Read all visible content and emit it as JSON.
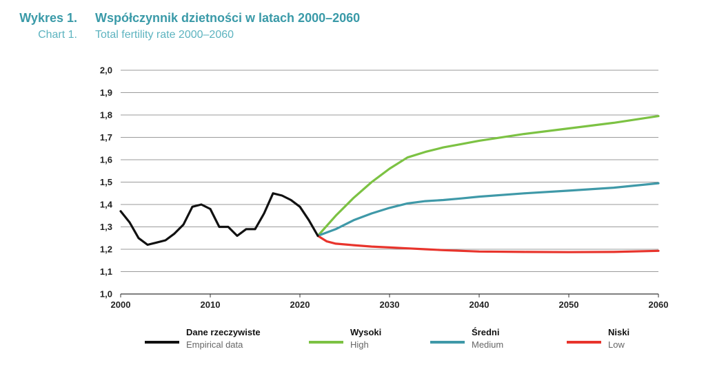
{
  "title": {
    "pl_prefix": "Wykres 1.",
    "pl_text": "Współczynnik dzietności w latach 2000–2060",
    "en_prefix": "Chart 1.",
    "en_text": "Total fertility rate 2000–2060"
  },
  "chart_data": {
    "type": "line",
    "title": "Współczynnik dzietności w latach 2000–2060",
    "subtitle": "Total fertility rate 2000–2060",
    "xlabel": "",
    "ylabel": "",
    "xlim": [
      2000,
      2060
    ],
    "ylim": [
      1.0,
      2.0
    ],
    "x_ticks": [
      "2000",
      "2010",
      "2020",
      "2030",
      "2040",
      "2050",
      "2060"
    ],
    "y_ticks": [
      "1,0",
      "1,1",
      "1,2",
      "1,3",
      "1,4",
      "1,5",
      "1,6",
      "1,7",
      "1,8",
      "1,9",
      "2,0"
    ],
    "grid": "horizontal",
    "legend_position": "bottom",
    "series": [
      {
        "name": "Dane rzeczywiste",
        "name_en": "Empirical data",
        "color": "#111111",
        "x": [
          2000,
          2001,
          2002,
          2003,
          2004,
          2005,
          2006,
          2007,
          2008,
          2009,
          2010,
          2011,
          2012,
          2013,
          2014,
          2015,
          2016,
          2017,
          2018,
          2019,
          2020,
          2021,
          2022
        ],
        "y": [
          1.37,
          1.32,
          1.25,
          1.22,
          1.23,
          1.24,
          1.27,
          1.31,
          1.39,
          1.4,
          1.38,
          1.3,
          1.3,
          1.26,
          1.29,
          1.29,
          1.36,
          1.45,
          1.44,
          1.42,
          1.39,
          1.33,
          1.26
        ]
      },
      {
        "name": "Wysoki",
        "name_en": "High",
        "color": "#7cc243",
        "x": [
          2022,
          2024,
          2026,
          2028,
          2030,
          2032,
          2034,
          2036,
          2038,
          2040,
          2045,
          2050,
          2055,
          2060
        ],
        "y": [
          1.26,
          1.35,
          1.43,
          1.5,
          1.56,
          1.61,
          1.635,
          1.655,
          1.67,
          1.685,
          1.715,
          1.74,
          1.765,
          1.795
        ]
      },
      {
        "name": "Średni",
        "name_en": "Medium",
        "color": "#3f99a8",
        "x": [
          2022,
          2024,
          2026,
          2028,
          2030,
          2032,
          2034,
          2036,
          2038,
          2040,
          2045,
          2050,
          2055,
          2060
        ],
        "y": [
          1.26,
          1.29,
          1.33,
          1.36,
          1.385,
          1.405,
          1.415,
          1.42,
          1.427,
          1.435,
          1.45,
          1.462,
          1.475,
          1.495
        ]
      },
      {
        "name": "Niski",
        "name_en": "Low",
        "color": "#e8342c",
        "x": [
          2022,
          2023,
          2024,
          2026,
          2028,
          2030,
          2032,
          2034,
          2036,
          2038,
          2040,
          2045,
          2050,
          2055,
          2060
        ],
        "y": [
          1.26,
          1.235,
          1.225,
          1.218,
          1.212,
          1.208,
          1.204,
          1.2,
          1.196,
          1.193,
          1.19,
          1.188,
          1.187,
          1.188,
          1.193
        ]
      }
    ]
  }
}
